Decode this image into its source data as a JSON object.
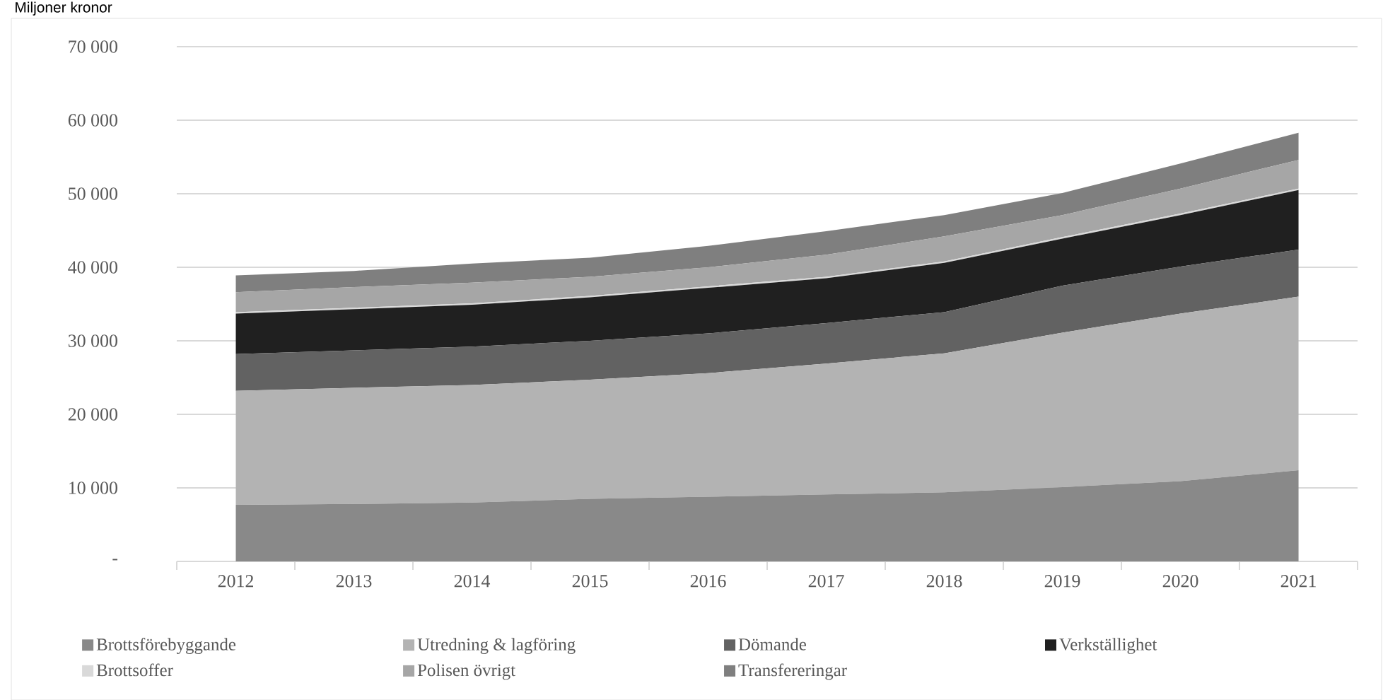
{
  "chart_data": {
    "type": "area",
    "stacked": true,
    "ylabel": "Miljoner kronor",
    "categories": [
      "2012",
      "2013",
      "2014",
      "2015",
      "2016",
      "2017",
      "2018",
      "2019",
      "2020",
      "2021"
    ],
    "series": [
      {
        "name": "Brottsförebyggande",
        "color": "#898989",
        "values": [
          7700,
          7800,
          8000,
          8500,
          8800,
          9100,
          9400,
          10100,
          10900,
          12400
        ]
      },
      {
        "name": "Utredning & lagföring",
        "color": "#b3b3b3",
        "values": [
          15500,
          15800,
          16000,
          16200,
          16800,
          17800,
          18900,
          21000,
          22800,
          23600
        ]
      },
      {
        "name": "Dömande",
        "color": "#626262",
        "values": [
          5000,
          5100,
          5200,
          5300,
          5400,
          5500,
          5600,
          6400,
          6400,
          6400
        ]
      },
      {
        "name": "Verkställighet",
        "color": "#202020",
        "values": [
          5500,
          5600,
          5700,
          5900,
          6200,
          6100,
          6700,
          6400,
          7000,
          8100
        ]
      },
      {
        "name": "Brottsoffer",
        "color": "#d9d9d9",
        "values": [
          200,
          200,
          200,
          200,
          200,
          200,
          200,
          200,
          200,
          200
        ]
      },
      {
        "name": "Polisen övrigt",
        "color": "#a6a6a6",
        "values": [
          2700,
          2800,
          2800,
          2600,
          2600,
          3000,
          3400,
          3000,
          3400,
          3900
        ]
      },
      {
        "name": "Transfereringar",
        "color": "#7f7f7f",
        "values": [
          2300,
          2200,
          2600,
          2600,
          2900,
          3200,
          2900,
          3000,
          3400,
          3700
        ]
      }
    ],
    "ylim": [
      0,
      70000
    ],
    "yticks": [
      {
        "value": 0,
        "label": "-"
      },
      {
        "value": 10000,
        "label": "10 000"
      },
      {
        "value": 20000,
        "label": "20 000"
      },
      {
        "value": 30000,
        "label": "30 000"
      },
      {
        "value": 40000,
        "label": "40 000"
      },
      {
        "value": 50000,
        "label": "50 000"
      },
      {
        "value": 60000,
        "label": "60 000"
      },
      {
        "value": 70000,
        "label": "70 000"
      }
    ],
    "grid": "y",
    "legend": "bottom"
  }
}
